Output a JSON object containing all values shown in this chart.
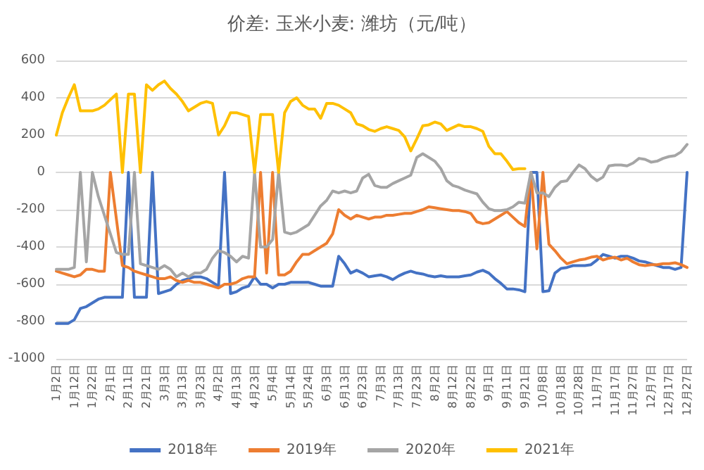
{
  "chart_data": {
    "type": "line",
    "title": "价差: 玉米小麦: 潍坊（元/吨）",
    "categories": [
      "1月2日",
      null,
      null,
      "1月12日",
      null,
      null,
      "1月22日",
      null,
      null,
      "2月1日",
      null,
      null,
      "2月11日",
      null,
      null,
      "2月21日",
      null,
      null,
      "3月3日",
      null,
      null,
      "3月13日",
      null,
      null,
      "3月23日",
      null,
      null,
      "4月2日",
      null,
      null,
      "4月13日",
      null,
      null,
      "4月23日",
      null,
      null,
      "5月4日",
      null,
      null,
      "5月14日",
      null,
      null,
      "5月24日",
      null,
      null,
      "6月3日",
      null,
      null,
      "6月13日",
      null,
      null,
      "6月23日",
      null,
      null,
      "7月3日",
      null,
      null,
      "7月13日",
      null,
      null,
      "7月23日",
      null,
      null,
      "8月2日",
      null,
      null,
      "8月12日",
      null,
      null,
      "8月22日",
      null,
      null,
      "9月1日",
      null,
      null,
      "9月11日",
      null,
      null,
      "9月21日",
      null,
      null,
      "10月8日",
      null,
      null,
      "10月18日",
      null,
      null,
      "10月28日",
      null,
      null,
      "11月7日",
      null,
      null,
      "11月17日",
      null,
      null,
      "11月27日",
      null,
      null,
      "12月7日",
      null,
      null,
      "12月17日",
      null,
      null,
      "12月27日"
    ],
    "series": [
      {
        "name": "2018年",
        "color": "#4472c4",
        "values": [
          -810,
          -810,
          -810,
          -790,
          -730,
          -720,
          -700,
          -680,
          -670,
          -670,
          -670,
          -670,
          0,
          -670,
          -670,
          -670,
          0,
          -650,
          -640,
          -630,
          -600,
          -580,
          -570,
          -560,
          -560,
          -570,
          -590,
          -610,
          0,
          -650,
          -640,
          -620,
          -610,
          -560,
          -600,
          -600,
          -620,
          -600,
          -600,
          -590,
          -590,
          -590,
          -590,
          -600,
          -610,
          -610,
          -610,
          -450,
          -490,
          -540,
          -525,
          -540,
          -560,
          -555,
          -550,
          -560,
          -575,
          -555,
          -540,
          -530,
          -540,
          -545,
          -555,
          -560,
          -555,
          -560,
          -560,
          -560,
          -555,
          -550,
          -535,
          -525,
          -540,
          -570,
          -595,
          -625,
          -625,
          -630,
          -640,
          0,
          0,
          -640,
          -635,
          -540,
          -515,
          -510,
          -500,
          -500,
          -500,
          -495,
          -470,
          -440,
          -450,
          -460,
          -450,
          -450,
          -460,
          -475,
          -480,
          -490,
          -500,
          -510,
          -510,
          -520,
          -510,
          0
        ]
      },
      {
        "name": "2019年",
        "color": "#ed7d31",
        "values": [
          -530,
          -540,
          -550,
          -560,
          -550,
          -520,
          -520,
          -530,
          -530,
          0,
          -250,
          -500,
          -510,
          -530,
          -540,
          -550,
          -560,
          -570,
          -570,
          -560,
          -580,
          -590,
          -580,
          -590,
          -590,
          -600,
          -610,
          -620,
          -600,
          -600,
          -590,
          -570,
          -560,
          -560,
          0,
          -540,
          0,
          -550,
          -550,
          -530,
          -480,
          -440,
          -440,
          -420,
          -400,
          -380,
          -330,
          -200,
          -230,
          -250,
          -230,
          -240,
          -250,
          -240,
          -240,
          -230,
          -230,
          -225,
          -220,
          -220,
          -210,
          -200,
          -185,
          -190,
          -195,
          -200,
          -205,
          -205,
          -210,
          -220,
          -265,
          -275,
          -270,
          -250,
          -230,
          -210,
          -240,
          -270,
          -290,
          0,
          -410,
          0,
          -385,
          -420,
          -460,
          -490,
          -480,
          -470,
          -465,
          -455,
          -450,
          -470,
          -460,
          -455,
          -470,
          -460,
          -480,
          -495,
          -500,
          -495,
          -495,
          -490,
          -490,
          -485,
          -495,
          -510
        ]
      },
      {
        "name": "2020年",
        "color": "#a5a5a5",
        "values": [
          -520,
          -520,
          -520,
          -510,
          0,
          -480,
          0,
          -130,
          -230,
          -330,
          -430,
          -440,
          -440,
          0,
          -490,
          -500,
          -510,
          -520,
          -500,
          -520,
          -560,
          -540,
          -560,
          -540,
          -540,
          -520,
          -460,
          -420,
          -430,
          -450,
          -480,
          -450,
          -460,
          0,
          -400,
          -400,
          -360,
          0,
          -320,
          -330,
          -320,
          -300,
          -280,
          -230,
          -180,
          -150,
          -100,
          -110,
          -100,
          -110,
          -100,
          -30,
          -10,
          -70,
          -80,
          -80,
          -60,
          -45,
          -30,
          -15,
          80,
          100,
          80,
          60,
          20,
          -45,
          -70,
          -80,
          -95,
          -105,
          -115,
          -160,
          -195,
          -205,
          -205,
          -200,
          -185,
          -160,
          -165,
          0,
          -110,
          -110,
          -130,
          -80,
          -50,
          -45,
          0,
          40,
          20,
          -20,
          -45,
          -25,
          35,
          40,
          40,
          35,
          50,
          75,
          70,
          55,
          60,
          75,
          85,
          90,
          110,
          150
        ]
      },
      {
        "name": "2021年",
        "color": "#ffc000",
        "values": [
          200,
          320,
          400,
          470,
          330,
          330,
          330,
          340,
          360,
          390,
          420,
          0,
          420,
          420,
          0,
          470,
          440,
          470,
          490,
          450,
          420,
          380,
          330,
          350,
          370,
          380,
          370,
          200,
          250,
          320,
          320,
          310,
          300,
          0,
          310,
          310,
          310,
          0,
          320,
          380,
          400,
          360,
          340,
          340,
          290,
          370,
          370,
          360,
          340,
          320,
          260,
          250,
          230,
          220,
          235,
          245,
          235,
          225,
          190,
          115,
          180,
          250,
          255,
          270,
          260,
          225,
          240,
          255,
          245,
          245,
          235,
          220,
          140,
          100,
          100,
          60,
          15,
          20,
          20,
          null,
          null,
          null,
          null,
          null,
          null,
          null,
          null,
          null,
          null,
          null,
          null,
          null,
          null,
          null,
          null,
          null,
          null,
          null,
          null,
          null,
          null,
          null,
          null,
          null,
          null,
          null
        ]
      }
    ],
    "ylim": [
      -1000,
      600
    ],
    "yticks": [
      -1000,
      -800,
      -600,
      -400,
      -200,
      0,
      200,
      400,
      600
    ],
    "grid": "y",
    "legend": "bottom",
    "marker": "none",
    "line_style": "solid"
  }
}
